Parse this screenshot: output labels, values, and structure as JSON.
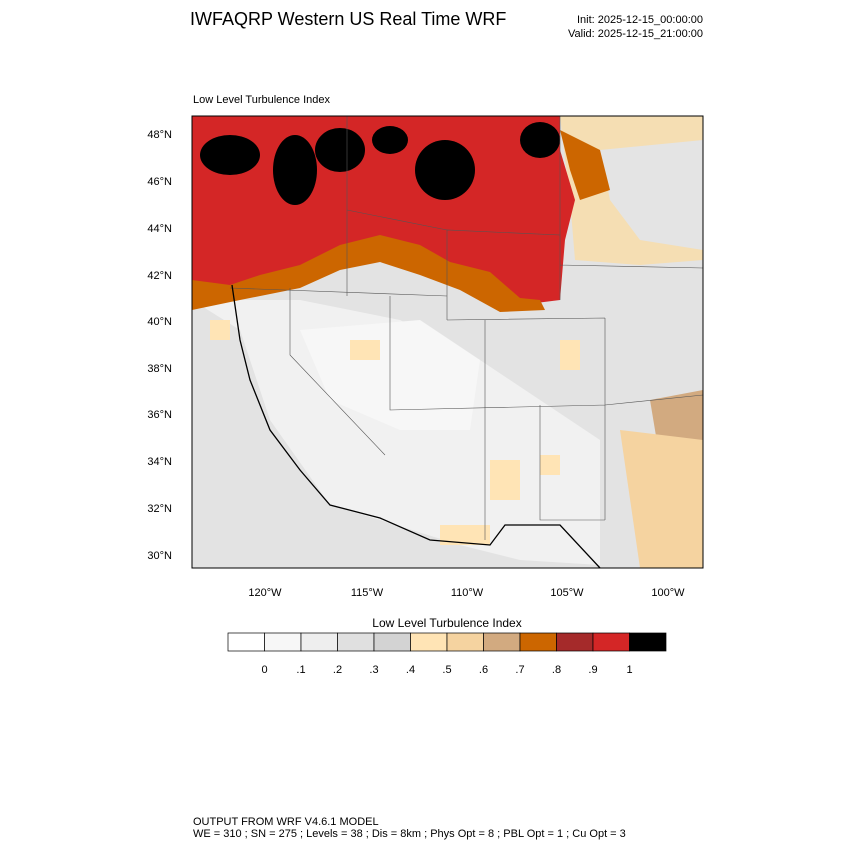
{
  "header": {
    "title": "IWFAQRP Western US Real Time WRF",
    "init": "Init: 2025-12-15_00:00:00",
    "valid": "Valid: 2025-12-15_21:00:00"
  },
  "map": {
    "subtitle": "Low Level Turbulence Index",
    "lat_labels": [
      "48°N",
      "46°N",
      "44°N",
      "42°N",
      "40°N",
      "38°N",
      "36°N",
      "34°N",
      "32°N",
      "30°N"
    ],
    "lon_labels": [
      "120°W",
      "115°W",
      "110°W",
      "105°W",
      "100°W"
    ]
  },
  "colorbar": {
    "title": "Low Level Turbulence Index",
    "colors": [
      "#ffffff",
      "#f7f7f7",
      "#eeeeee",
      "#e0e0e0",
      "#d3d3d3",
      "#ffe4b5",
      "#f5d3a0",
      "#d2aa80",
      "#cc6600",
      "#a52a2a",
      "#d42626",
      "#000000"
    ],
    "labels": [
      "0",
      ".1",
      ".2",
      ".3",
      ".4",
      ".5",
      ".6",
      ".7",
      ".8",
      ".9",
      "1"
    ]
  },
  "footer": {
    "line1": "OUTPUT FROM WRF V4.6.1 MODEL",
    "line2": "WE = 310 ; SN = 275 ; Levels = 38 ; Dis = 8km ; Phys Opt = 8 ; PBL Opt = 1 ; Cu Opt = 3"
  }
}
